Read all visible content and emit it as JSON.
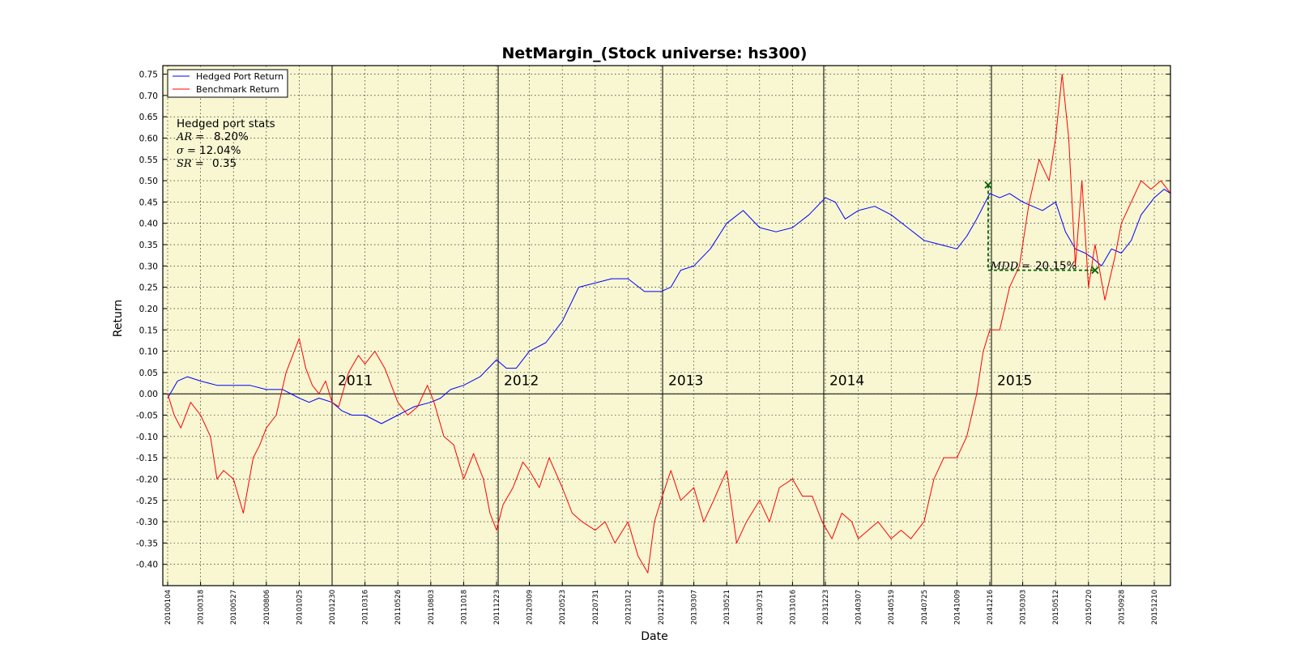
{
  "chart_data": {
    "type": "line",
    "title": "NetMargin_(Stock universe: hs300)",
    "xlabel": "Date",
    "ylabel": "Return",
    "ylim": [
      -0.45,
      0.77
    ],
    "yticks": [
      "0.75",
      "0.70",
      "0.65",
      "0.60",
      "0.55",
      "0.50",
      "0.45",
      "0.40",
      "0.35",
      "0.30",
      "0.25",
      "0.20",
      "0.15",
      "0.10",
      "0.05",
      "0.00",
      "-0.05",
      "-0.10",
      "-0.15",
      "-0.20",
      "-0.25",
      "-0.30",
      "-0.35",
      "-0.40"
    ],
    "xticks": [
      "20100104",
      "20100318",
      "20100527",
      "20100806",
      "20101025",
      "20101230",
      "20110316",
      "20110526",
      "20110803",
      "20111018",
      "20111223",
      "20120309",
      "20120523",
      "20120731",
      "20121012",
      "20121219",
      "20130307",
      "20130521",
      "20130731",
      "20131016",
      "20131223",
      "20140307",
      "20140519",
      "20140725",
      "20141009",
      "20141216",
      "20150303",
      "20150512",
      "20150720",
      "20150928",
      "20151210"
    ],
    "grid": true,
    "legend_position": "top-left",
    "background_color": "#f8f7d2",
    "year_labels": [
      "2011",
      "2012",
      "2013",
      "2014",
      "2015"
    ],
    "year_boundary_index": [
      5.0,
      10.05,
      15.05,
      19.95,
      25.05
    ],
    "zero_line": true,
    "series": [
      {
        "name": "Hedged Port Return",
        "color": "#0000ff",
        "x_index": [
          0,
          0.3,
          0.6,
          1,
          1.5,
          2,
          2.5,
          3,
          3.5,
          4,
          4.3,
          4.6,
          5,
          5.3,
          5.6,
          6,
          6.5,
          7,
          7.5,
          8,
          8.3,
          8.6,
          9,
          9.5,
          10,
          10.3,
          10.6,
          11,
          11.5,
          12,
          12.5,
          13,
          13.5,
          14,
          14.5,
          15,
          15.3,
          15.6,
          16,
          16.5,
          17,
          17.5,
          18,
          18.5,
          19,
          19.5,
          20,
          20.3,
          20.6,
          21,
          21.5,
          22,
          22.5,
          23,
          23.5,
          24,
          24.3,
          24.6,
          25,
          25.3,
          25.6,
          26,
          26.3,
          26.6,
          27,
          27.3,
          27.6,
          27.9,
          28.1,
          28.4,
          28.7,
          29,
          29.3,
          29.6,
          30,
          30.3,
          30.5
        ],
        "values": [
          -0.01,
          0.03,
          0.04,
          0.03,
          0.02,
          0.02,
          0.02,
          0.01,
          0.01,
          -0.01,
          -0.02,
          -0.01,
          -0.02,
          -0.04,
          -0.05,
          -0.05,
          -0.07,
          -0.05,
          -0.03,
          -0.02,
          -0.01,
          0.01,
          0.02,
          0.04,
          0.08,
          0.06,
          0.06,
          0.1,
          0.12,
          0.17,
          0.25,
          0.26,
          0.27,
          0.27,
          0.24,
          0.24,
          0.25,
          0.29,
          0.3,
          0.34,
          0.4,
          0.43,
          0.39,
          0.38,
          0.39,
          0.42,
          0.46,
          0.45,
          0.41,
          0.43,
          0.44,
          0.42,
          0.39,
          0.36,
          0.35,
          0.34,
          0.37,
          0.41,
          0.47,
          0.46,
          0.47,
          0.45,
          0.44,
          0.43,
          0.45,
          0.38,
          0.34,
          0.33,
          0.32,
          0.3,
          0.34,
          0.33,
          0.36,
          0.42,
          0.46,
          0.48,
          0.47
        ]
      },
      {
        "name": "Benchmark Return",
        "color": "#ff0000",
        "x_index": [
          0,
          0.2,
          0.4,
          0.7,
          1,
          1.3,
          1.5,
          1.7,
          2,
          2.3,
          2.6,
          2.8,
          3,
          3.3,
          3.6,
          4,
          4.2,
          4.4,
          4.6,
          4.8,
          5,
          5.2,
          5.5,
          5.8,
          6,
          6.3,
          6.6,
          7,
          7.3,
          7.6,
          7.9,
          8.1,
          8.4,
          8.7,
          9,
          9.3,
          9.6,
          9.8,
          10,
          10.2,
          10.5,
          10.8,
          11,
          11.3,
          11.6,
          12,
          12.3,
          12.6,
          13,
          13.3,
          13.6,
          14,
          14.3,
          14.6,
          14.8,
          15,
          15.3,
          15.6,
          16,
          16.3,
          16.6,
          17,
          17.3,
          17.6,
          18,
          18.3,
          18.6,
          19,
          19.3,
          19.6,
          19.9,
          20.2,
          20.5,
          20.8,
          21,
          21.3,
          21.6,
          22,
          22.3,
          22.6,
          23,
          23.3,
          23.6,
          24,
          24.3,
          24.6,
          24.8,
          25,
          25.3,
          25.6,
          25.9,
          26.2,
          26.5,
          26.8,
          27,
          27.2,
          27.4,
          27.6,
          27.8,
          28,
          28.2,
          28.5,
          28.8,
          29,
          29.3,
          29.6,
          29.9,
          30.2,
          30.5
        ],
        "values": [
          0,
          -0.05,
          -0.08,
          -0.02,
          -0.05,
          -0.1,
          -0.2,
          -0.18,
          -0.2,
          -0.28,
          -0.15,
          -0.12,
          -0.08,
          -0.05,
          0.05,
          0.13,
          0.06,
          0.02,
          0.0,
          0.03,
          -0.02,
          -0.03,
          0.05,
          0.09,
          0.07,
          0.1,
          0.06,
          -0.02,
          -0.05,
          -0.03,
          0.02,
          -0.02,
          -0.1,
          -0.12,
          -0.2,
          -0.14,
          -0.2,
          -0.28,
          -0.32,
          -0.26,
          -0.22,
          -0.16,
          -0.18,
          -0.22,
          -0.15,
          -0.22,
          -0.28,
          -0.3,
          -0.32,
          -0.3,
          -0.35,
          -0.3,
          -0.38,
          -0.42,
          -0.3,
          -0.25,
          -0.18,
          -0.25,
          -0.22,
          -0.3,
          -0.25,
          -0.18,
          -0.35,
          -0.3,
          -0.25,
          -0.3,
          -0.22,
          -0.2,
          -0.24,
          -0.24,
          -0.3,
          -0.34,
          -0.28,
          -0.3,
          -0.34,
          -0.32,
          -0.3,
          -0.34,
          -0.32,
          -0.34,
          -0.3,
          -0.2,
          -0.15,
          -0.15,
          -0.1,
          0.0,
          0.1,
          0.15,
          0.15,
          0.25,
          0.3,
          0.45,
          0.55,
          0.5,
          0.6,
          0.75,
          0.6,
          0.3,
          0.5,
          0.25,
          0.35,
          0.22,
          0.32,
          0.4,
          0.45,
          0.5,
          0.48,
          0.5,
          0.47
        ]
      }
    ],
    "mdd": {
      "label_var": "MDD =",
      "value": "20.15%",
      "peak": {
        "x_index": 24.95,
        "value": 0.49
      },
      "trough": {
        "x_index": 28.2,
        "value": 0.29
      },
      "color": "#006400"
    }
  },
  "stats_box": {
    "title": "Hedged port stats",
    "lines": [
      {
        "var": "AR =",
        "value": "8.20%"
      },
      {
        "var": "σ =",
        "value": "12.04%"
      },
      {
        "var": "SR =",
        "value": "0.35"
      }
    ]
  }
}
